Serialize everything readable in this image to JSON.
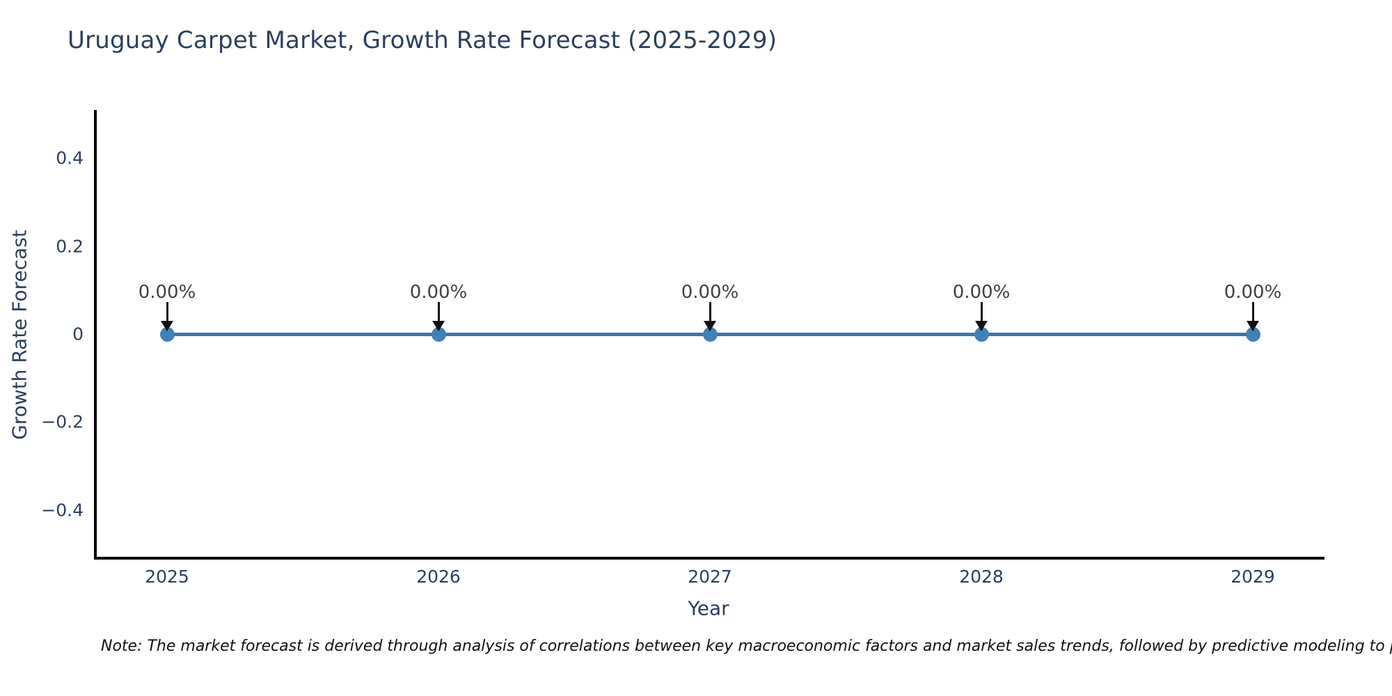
{
  "title": "Uruguay Carpet Market, Growth Rate Forecast (2025-2029)",
  "note": "Note: The market forecast is derived through analysis of correlations between key macroeconomic factors and market sales trends, followed by predictive modeling to project future sales",
  "chart_data": {
    "type": "line",
    "title": "Uruguay Carpet Market, Growth Rate Forecast (2025-2029)",
    "xlabel": "Year",
    "ylabel": "Growth Rate Forecast",
    "categories": [
      "2025",
      "2026",
      "2027",
      "2028",
      "2029"
    ],
    "series": [
      {
        "name": "Growth Rate Forecast",
        "values": [
          0,
          0,
          0,
          0,
          0
        ],
        "point_labels": [
          "0.00%",
          "0.00%",
          "0.00%",
          "0.00%",
          "0.00%"
        ]
      }
    ],
    "y_ticks": [
      {
        "value": 0.4,
        "label": "0.4"
      },
      {
        "value": 0.2,
        "label": "0.2"
      },
      {
        "value": 0,
        "label": "0"
      },
      {
        "value": -0.2,
        "label": "−0.2"
      },
      {
        "value": -0.4,
        "label": "−0.4"
      }
    ],
    "ylim": [
      -0.5,
      0.5
    ],
    "grid": false,
    "legend_position": "none",
    "annotations_have_arrows": true,
    "colors": {
      "line": "#3a75a8",
      "marker": "#4181b8",
      "axis": "#000000",
      "text": "#2a3f5f",
      "annotation_text": "#404040",
      "arrow": "#111111",
      "note_text": "#111111",
      "background": "#ffffff"
    }
  }
}
